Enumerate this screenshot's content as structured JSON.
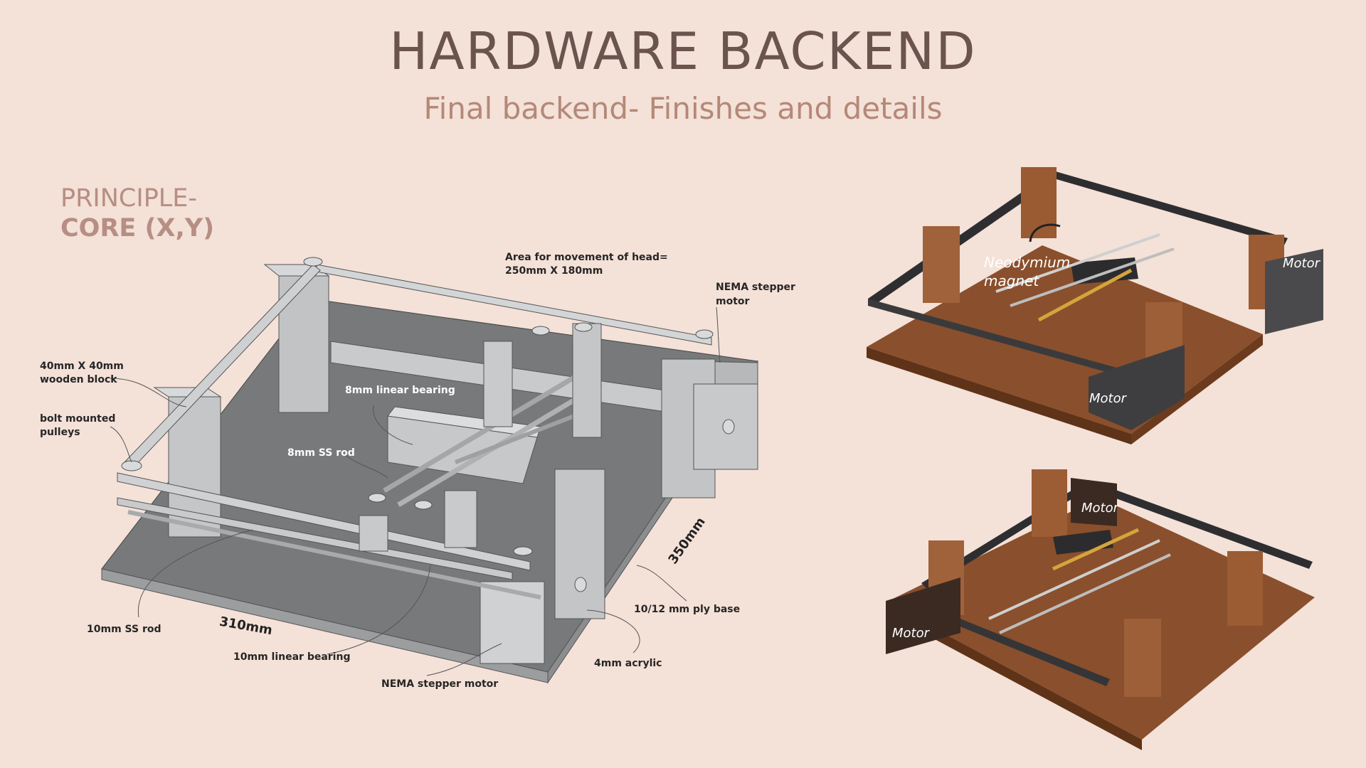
{
  "header": {
    "title": "HARDWARE BACKEND",
    "subtitle": "Final backend- Finishes and details"
  },
  "principle": {
    "line1": "PRINCIPLE-",
    "line2": "CORE (X,Y)"
  },
  "diagram": {
    "area_note_1": "Area for movement of head=",
    "area_note_2": "250mm X 180mm",
    "nema_top_1": "NEMA stepper",
    "nema_top_2": "motor",
    "wood_block_1": "40mm X 40mm",
    "wood_block_2": "wooden block",
    "pulleys_1": "bolt mounted",
    "pulleys_2": "pulleys",
    "linear_bearing_8": "8mm linear bearing",
    "ss_rod_8": "8mm SS rod",
    "ss_rod_10": "10mm SS rod",
    "linear_bearing_10": "10mm linear bearing",
    "nema_bottom": "NEMA stepper motor",
    "acrylic": "4mm acrylic",
    "ply_base": "10/12 mm ply base",
    "dim_width": "310mm",
    "dim_depth": "350mm"
  },
  "render_top": {
    "magnet_1": "Neodymium",
    "magnet_2": "magnet",
    "motor_right": "Motor",
    "motor_front": "Motor"
  },
  "render_bottom": {
    "motor_back": "Motor",
    "motor_left": "Motor"
  },
  "colors": {
    "background": "#f4e1d8",
    "title": "#6b534e",
    "subtitle": "#b48878",
    "wood": "#8a4f2c",
    "metal": "#2e2e30"
  }
}
